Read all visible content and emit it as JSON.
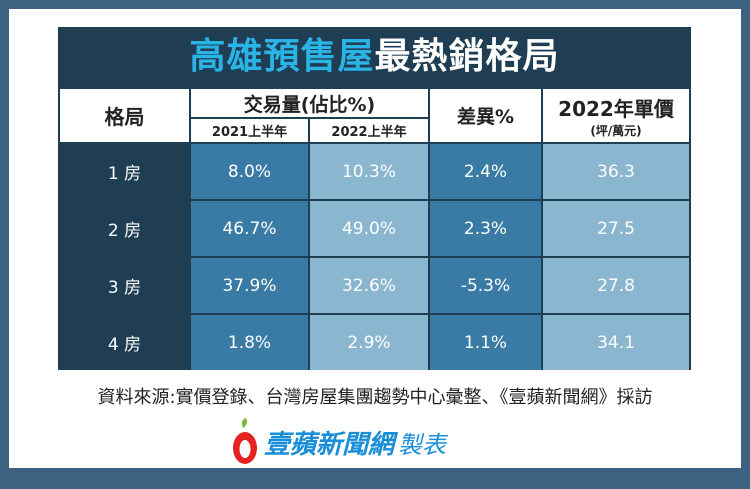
{
  "title": {
    "highlight": "高雄預售屋",
    "rest": "最熱銷格局"
  },
  "header": {
    "layout": "格局",
    "volume": "交易量(佔比%)",
    "h2021": "2021上半年",
    "h2022": "2022上半年",
    "diff": "差異%",
    "price": "2022年單價",
    "price_unit": "(坪/萬元)"
  },
  "rows": [
    {
      "layout": "1 房",
      "v2021": "8.0%",
      "v2022": "10.3%",
      "diff": "2.4%",
      "price": "36.3"
    },
    {
      "layout": "2 房",
      "v2021": "46.7%",
      "v2022": "49.0%",
      "diff": "2.3%",
      "price": "27.5"
    },
    {
      "layout": "3 房",
      "v2021": "37.9%",
      "v2022": "32.6%",
      "diff": "-5.3%",
      "price": "27.8"
    },
    {
      "layout": "4 房",
      "v2021": "1.8%",
      "v2022": "2.9%",
      "diff": "1.1%",
      "price": "34.1"
    }
  ],
  "source": "資料來源:實價登錄、台灣房屋集團趨勢中心彙整、《壹蘋新聞網》採訪",
  "logo": {
    "brand": "壹蘋新聞網",
    "suffix": "製表"
  },
  "colors": {
    "frame": "#3d6181",
    "dark": "#1f3e54",
    "mid": "#3a7ba5",
    "light": "#8bb6cf",
    "accent": "#2ab4e6"
  }
}
